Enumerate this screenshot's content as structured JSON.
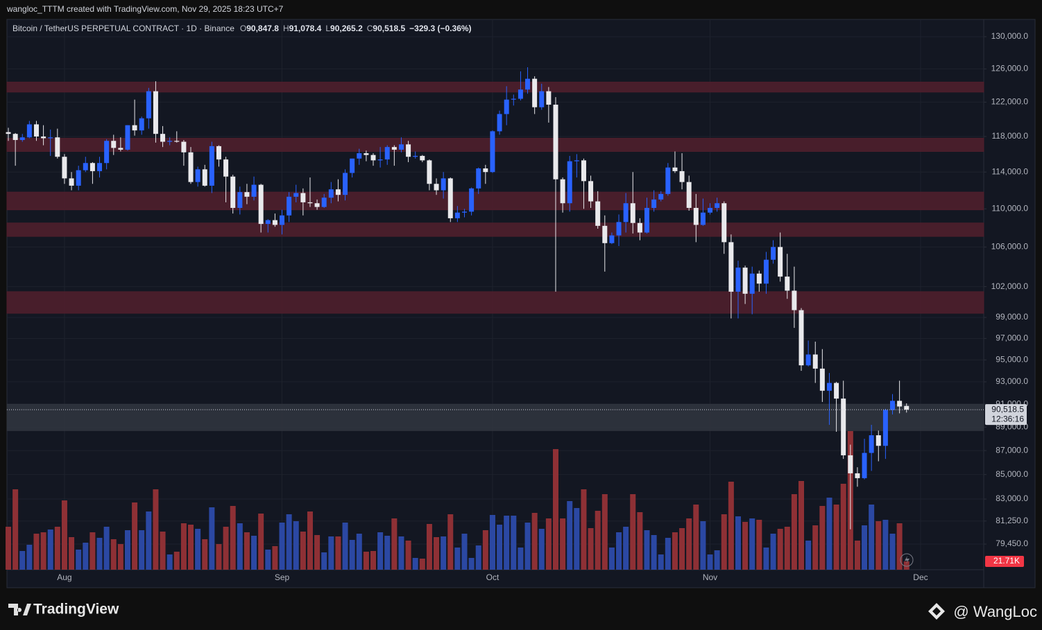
{
  "header": {
    "created_by": "wangloc_TTTM created with TradingView.com, Nov 29, 2025 18:23 UTC+7"
  },
  "legend": {
    "symbol": "Bitcoin / TetherUS PERPETUAL CONTRACT · 1D · Binance",
    "keys": [
      "O",
      "H",
      "L",
      "C"
    ],
    "values": [
      "90,847.8",
      "91,078.4",
      "90,265.2",
      "90,518.5"
    ],
    "change": "−329.3 (−0.36%)"
  },
  "footer": {
    "brand": "TradingView",
    "watermark": "@ WangLoc"
  },
  "chart_data": {
    "type": "candlestick",
    "log_scale": true,
    "grid": true,
    "up_color": "#2962ff",
    "down_color": "#e9e9ec",
    "volume_up_color": "#2b48a3",
    "volume_down_color": "#8e3035",
    "ylim": [
      77500,
      132200
    ],
    "yticks": [
      {
        "value": 130000,
        "label": "130,000.0"
      },
      {
        "value": 126000,
        "label": "126,000.0"
      },
      {
        "value": 122000,
        "label": "122,000.0"
      },
      {
        "value": 118000,
        "label": "118,000.0"
      },
      {
        "value": 114000,
        "label": "114,000.0"
      },
      {
        "value": 110000,
        "label": "110,000.0"
      },
      {
        "value": 106000,
        "label": "106,000.0"
      },
      {
        "value": 102000,
        "label": "102,000.0"
      },
      {
        "value": 99000,
        "label": "99,000.0"
      },
      {
        "value": 97000,
        "label": "97,000.0"
      },
      {
        "value": 95000,
        "label": "95,000.0"
      },
      {
        "value": 93000,
        "label": "93,000.0"
      },
      {
        "value": 91000,
        "label": "91,000.0"
      },
      {
        "value": 89000,
        "label": "89,000.0"
      },
      {
        "value": 87000,
        "label": "87,000.0"
      },
      {
        "value": 85000,
        "label": "85,000.0"
      },
      {
        "value": 83000,
        "label": "83,000.0"
      },
      {
        "value": 81250,
        "label": "81,250.0"
      },
      {
        "value": 79450,
        "label": "79,450.0"
      }
    ],
    "xlim": [
      -0.2,
      139
    ],
    "xticks": [
      {
        "value": 8,
        "label": "Aug"
      },
      {
        "value": 39,
        "label": "Sep"
      },
      {
        "value": 69,
        "label": "Oct"
      },
      {
        "value": 100,
        "label": "Nov"
      },
      {
        "value": 130,
        "label": "Dec"
      }
    ],
    "zones": [
      {
        "low": 123200,
        "high": 124400,
        "color": "#4f1f2c"
      },
      {
        "low": 116300,
        "high": 117800,
        "color": "#4f1f2c"
      },
      {
        "low": 109900,
        "high": 111800,
        "color": "#4f1f2c"
      },
      {
        "low": 107100,
        "high": 108500,
        "color": "#4f1f2c"
      },
      {
        "low": 99400,
        "high": 101500,
        "color": "#4f1f2c"
      },
      {
        "low": 88700,
        "high": 91000,
        "color": "#30343e"
      }
    ],
    "candles": {
      "open": [
        118500,
        118300,
        117600,
        117900,
        119400,
        118000,
        117800,
        117900,
        115700,
        113300,
        112500,
        114200,
        115000,
        114100,
        115000,
        117500,
        116700,
        116500,
        119300,
        118700,
        120100,
        123300,
        118300,
        117400,
        117500,
        117400,
        116200,
        112900,
        114300,
        112500,
        116900,
        115400,
        113500,
        110100,
        111800,
        111300,
        112600,
        108400,
        108800,
        108300,
        109300,
        111300,
        111700,
        110700,
        110600,
        110200,
        111200,
        112100,
        111500,
        113900,
        115500,
        116100,
        115900,
        115300,
        115400,
        116800,
        116500,
        117100,
        115700,
        115800,
        115300,
        112700,
        112000,
        113300,
        109000,
        109600,
        109700,
        112200,
        114400,
        114000,
        118600,
        120600,
        122300,
        122400,
        123500,
        124800,
        121400,
        123300,
        121700,
        113200,
        110600,
        115200,
        115300,
        113000,
        110800,
        108200,
        106400,
        107200,
        108600,
        110600,
        108500,
        107500,
        110100,
        111000,
        111600,
        114500,
        114100,
        112900,
        110100,
        108300,
        109600,
        110100,
        110600,
        106500,
        101500,
        103900,
        101300,
        103300,
        102300,
        104700,
        106000,
        103000,
        101600,
        99700,
        94500,
        95500,
        94200,
        92200,
        92900,
        91500,
        86600,
        85100,
        84700,
        86800,
        88300,
        87400,
        90500,
        91300,
        90847.8
      ],
      "high": [
        119000,
        118400,
        118300,
        119800,
        119800,
        119300,
        118800,
        118900,
        116000,
        114000,
        114700,
        115700,
        115100,
        115700,
        117700,
        118200,
        117900,
        119300,
        122300,
        120300,
        123700,
        124500,
        119200,
        117900,
        118600,
        117600,
        116800,
        114600,
        114800,
        117400,
        117000,
        115700,
        113700,
        112400,
        112700,
        113500,
        112700,
        108900,
        109500,
        109900,
        111800,
        112600,
        112200,
        113400,
        111000,
        111600,
        112900,
        113200,
        114300,
        115500,
        116600,
        116400,
        116100,
        116800,
        117000,
        117000,
        117900,
        117500,
        116300,
        115900,
        115400,
        113300,
        114000,
        113400,
        110300,
        110000,
        112300,
        114500,
        114800,
        118700,
        121000,
        123900,
        122900,
        125700,
        126200,
        125100,
        124200,
        123800,
        122600,
        113400,
        115800,
        116000,
        115500,
        113600,
        111900,
        109300,
        107500,
        109400,
        111700,
        114000,
        109000,
        111200,
        112000,
        111900,
        115000,
        116300,
        116100,
        113600,
        111600,
        111100,
        110600,
        111200,
        110800,
        107300,
        104600,
        104100,
        104000,
        103600,
        105500,
        106700,
        107500,
        105300,
        104000,
        99900,
        96800,
        96700,
        96000,
        93800,
        93000,
        93100,
        87500,
        85600,
        88000,
        89200,
        88700,
        90600,
        91900,
        93100,
        91078.4
      ],
      "low": [
        117500,
        114700,
        117400,
        117800,
        117500,
        117000,
        115800,
        115500,
        112700,
        112000,
        112000,
        114000,
        112700,
        113400,
        114300,
        115900,
        116300,
        116400,
        118100,
        118200,
        118900,
        117300,
        116800,
        117000,
        117300,
        114700,
        112700,
        112400,
        112400,
        111700,
        114600,
        110700,
        109500,
        109400,
        110500,
        110900,
        107500,
        107500,
        108100,
        107300,
        108600,
        110700,
        109300,
        110200,
        109900,
        110100,
        110600,
        110800,
        110900,
        113400,
        114800,
        115200,
        114700,
        114500,
        114800,
        114700,
        116200,
        115100,
        115500,
        115100,
        112000,
        111500,
        111100,
        108600,
        108600,
        109100,
        109300,
        111600,
        112700,
        113900,
        118200,
        119300,
        121600,
        122200,
        123000,
        120600,
        121100,
        119600,
        101500,
        109600,
        109700,
        113400,
        110000,
        110100,
        107900,
        103500,
        106300,
        106100,
        107500,
        107400,
        106700,
        107400,
        109700,
        110800,
        111400,
        113900,
        112100,
        109800,
        106500,
        108200,
        109400,
        109700,
        105300,
        98900,
        98900,
        100300,
        99300,
        101500,
        101300,
        104300,
        102500,
        100800,
        98000,
        94000,
        94400,
        92900,
        91200,
        89200,
        88600,
        86300,
        80600,
        84000,
        84600,
        85300,
        86100,
        86300,
        90100,
        90200,
        90265.2
      ],
      "close": [
        118300,
        117600,
        117900,
        119400,
        118000,
        117800,
        117900,
        115700,
        113300,
        112500,
        114200,
        115000,
        114100,
        115000,
        117500,
        116700,
        116500,
        119300,
        118700,
        120100,
        123300,
        118300,
        117400,
        117500,
        117400,
        116200,
        112900,
        114300,
        112500,
        116900,
        115400,
        113500,
        110100,
        111800,
        111300,
        112600,
        108400,
        108800,
        108300,
        109300,
        111300,
        111700,
        110700,
        110600,
        110200,
        111200,
        112100,
        111500,
        113900,
        115500,
        116100,
        115900,
        115300,
        115400,
        116800,
        116500,
        117100,
        115700,
        115800,
        115300,
        112700,
        112000,
        113300,
        109000,
        109600,
        109700,
        112200,
        114400,
        114000,
        118600,
        120600,
        122300,
        122400,
        123500,
        124800,
        121400,
        123300,
        121700,
        113200,
        110600,
        115200,
        115300,
        113000,
        110800,
        108200,
        106400,
        107200,
        108600,
        110600,
        108500,
        107500,
        110100,
        111000,
        111600,
        114500,
        114100,
        112900,
        110100,
        108300,
        109600,
        110100,
        110600,
        106500,
        101500,
        103900,
        101300,
        103300,
        102300,
        104700,
        106000,
        103000,
        101600,
        99700,
        94500,
        95500,
        94200,
        92200,
        92900,
        91500,
        86600,
        85100,
        84700,
        86800,
        88300,
        87400,
        90500,
        91300,
        90800,
        90518.5
      ],
      "volume": [
        111600,
        208800,
        48600,
        64800,
        93600,
        97200,
        104400,
        111600,
        180000,
        84600,
        52200,
        70200,
        97200,
        82800,
        111600,
        79200,
        66600,
        102600,
        174600,
        102600,
        151200,
        208800,
        99000,
        39600,
        46800,
        120600,
        117000,
        106200,
        79200,
        162000,
        66600,
        111600,
        165600,
        120600,
        97200,
        88200,
        145800,
        52200,
        61200,
        122400,
        144000,
        126000,
        99000,
        151200,
        90000,
        45000,
        86400,
        86400,
        122400,
        77400,
        93600,
        46800,
        48600,
        97200,
        88200,
        133200,
        86400,
        75600,
        30600,
        28800,
        118800,
        84600,
        86400,
        144000,
        57600,
        93600,
        30600,
        63000,
        102600,
        142200,
        117000,
        140400,
        140400,
        57600,
        122400,
        147600,
        106200,
        133200,
        313200,
        133200,
        178200,
        160200,
        208800,
        108000,
        153000,
        196200,
        57600,
        97200,
        111600,
        196200,
        149400,
        102600,
        90000,
        39600,
        82800,
        97200,
        108000,
        133200,
        169200,
        126000,
        39600,
        50400,
        144000,
        228600,
        138600,
        124200,
        133200,
        129600,
        57600,
        93600,
        106200,
        111600,
        196200,
        230400,
        75600,
        115200,
        165600,
        187200,
        169200,
        223200,
        360000,
        75600,
        115200,
        169200,
        126000,
        129600,
        93600,
        120600,
        21710
      ]
    },
    "last_price_label": "90,518.5",
    "countdown": "12:36:16",
    "volume_last_label": "21.71K"
  }
}
